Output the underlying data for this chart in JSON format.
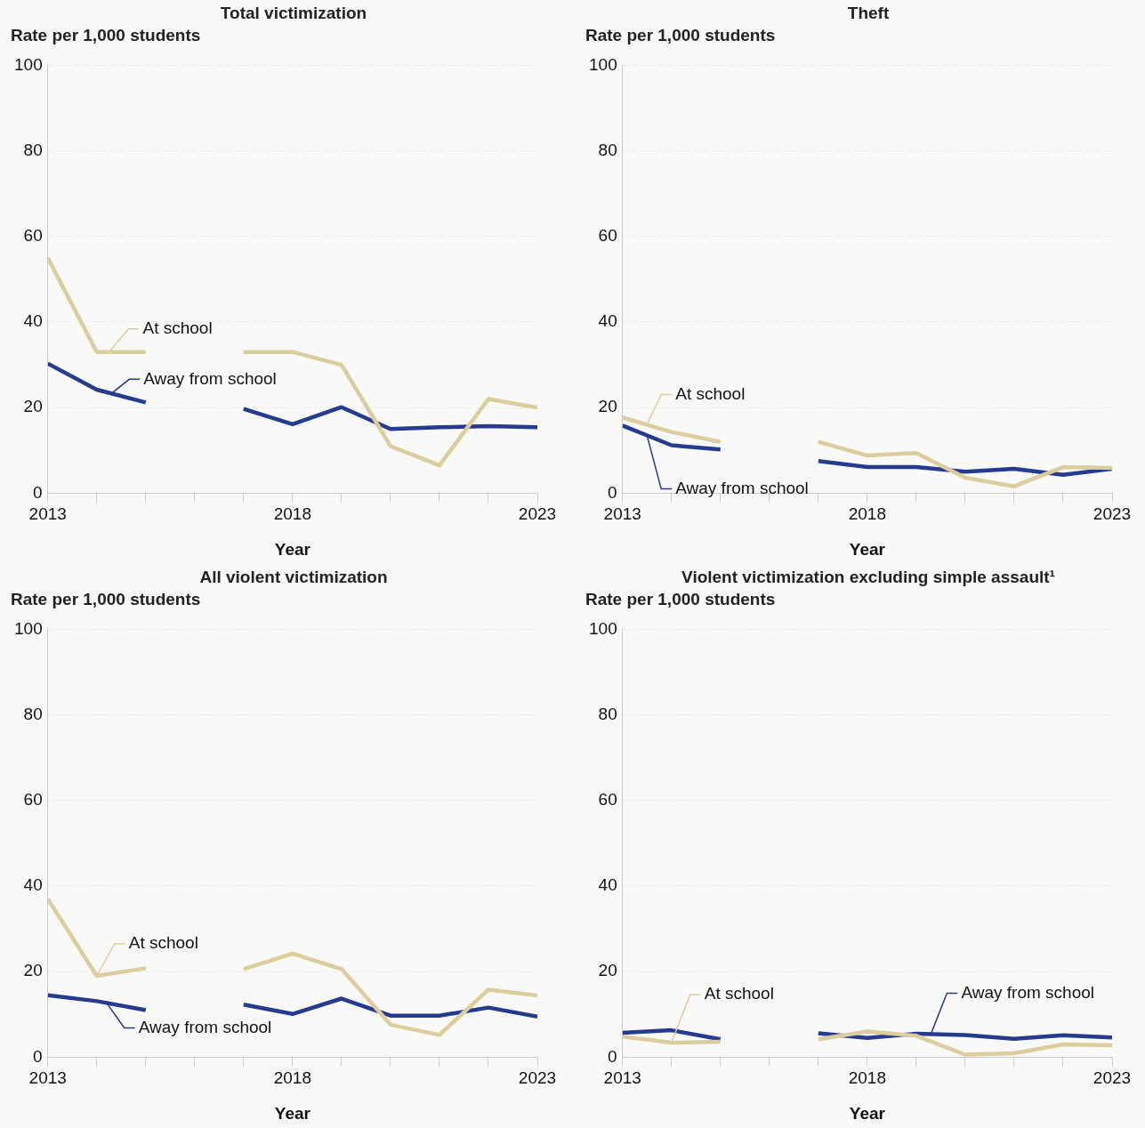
{
  "chart_data": [
    {
      "type": "line",
      "title": "Total victimization",
      "ylabel": "Rate per 1,000 students",
      "xlabel": "Year",
      "x": [
        2013,
        2014,
        2015,
        2016,
        2017,
        2018,
        2019,
        2020,
        2021,
        2022,
        2023
      ],
      "series": [
        {
          "name": "At school",
          "color": "#dccd9e",
          "values": [
            55,
            33,
            33,
            null,
            33,
            33,
            30,
            11,
            6.5,
            22,
            20
          ]
        },
        {
          "name": "Away from school",
          "color": "#263a8e",
          "values": [
            30.3,
            24.2,
            21.2,
            null,
            19.7,
            16.1,
            20.1,
            15,
            15.4,
            15.7,
            15.4
          ]
        }
      ],
      "xlim": [
        2013,
        2023
      ],
      "xticks": [
        2013,
        {
          "value": 2014,
          "label": null
        },
        {
          "value": 2015,
          "label": null
        },
        {
          "value": 2016,
          "label": null
        },
        {
          "value": 2017,
          "label": null
        },
        2018,
        {
          "value": 2019,
          "label": null
        },
        {
          "value": 2020,
          "label": null
        },
        {
          "value": 2021,
          "label": null
        },
        {
          "value": 2022,
          "label": null
        },
        2023
      ],
      "ylim": [
        0,
        100
      ],
      "yticks": [
        0,
        20,
        40,
        60,
        80,
        100
      ],
      "grid": "y"
    },
    {
      "type": "line",
      "title": "Theft",
      "ylabel": "Rate per 1,000 students",
      "xlabel": "Year",
      "x": [
        2013,
        2014,
        2015,
        2016,
        2017,
        2018,
        2019,
        2020,
        2021,
        2022,
        2023
      ],
      "series": [
        {
          "name": "At school",
          "color": "#dccd9e",
          "values": [
            17.7,
            14.3,
            12,
            null,
            12,
            8.8,
            9.4,
            3.6,
            1.6,
            6.1,
            5.9
          ]
        },
        {
          "name": "Away from school",
          "color": "#263a8e",
          "values": [
            15.8,
            11.2,
            10.2,
            null,
            7.5,
            6.1,
            6.1,
            5,
            5.7,
            4.3,
            5.7
          ]
        }
      ],
      "xlim": [
        2013,
        2023
      ],
      "xticks": [
        2013,
        {
          "value": 2014,
          "label": null
        },
        {
          "value": 2015,
          "label": null
        },
        {
          "value": 2016,
          "label": null
        },
        {
          "value": 2017,
          "label": null
        },
        2018,
        {
          "value": 2019,
          "label": null
        },
        {
          "value": 2020,
          "label": null
        },
        {
          "value": 2021,
          "label": null
        },
        {
          "value": 2022,
          "label": null
        },
        2023
      ],
      "ylim": [
        0,
        100
      ],
      "yticks": [
        0,
        20,
        40,
        60,
        80,
        100
      ],
      "grid": "y"
    },
    {
      "type": "line",
      "title": "All violent victimization",
      "ylabel": "Rate per 1,000 students",
      "xlabel": "Year",
      "x": [
        2013,
        2014,
        2015,
        2016,
        2017,
        2018,
        2019,
        2020,
        2021,
        2022,
        2023
      ],
      "series": [
        {
          "name": "At school",
          "color": "#dccd9e",
          "values": [
            37,
            19,
            20.8,
            null,
            20.6,
            24.2,
            20.6,
            7.6,
            5.2,
            15.8,
            14.4
          ]
        },
        {
          "name": "Away from school",
          "color": "#263a8e",
          "values": [
            14.5,
            13.1,
            11,
            null,
            12.3,
            10.1,
            13.7,
            9.7,
            9.7,
            11.6,
            9.5
          ]
        }
      ],
      "xlim": [
        2013,
        2023
      ],
      "xticks": [
        2013,
        {
          "value": 2014,
          "label": null
        },
        {
          "value": 2015,
          "label": null
        },
        {
          "value": 2016,
          "label": null
        },
        {
          "value": 2017,
          "label": null
        },
        2018,
        {
          "value": 2019,
          "label": null
        },
        {
          "value": 2020,
          "label": null
        },
        {
          "value": 2021,
          "label": null
        },
        {
          "value": 2022,
          "label": null
        },
        2023
      ],
      "ylim": [
        0,
        100
      ],
      "yticks": [
        0,
        20,
        40,
        60,
        80,
        100
      ],
      "grid": "y"
    },
    {
      "type": "line",
      "title": "Violent victimization excluding simple assault¹",
      "ylabel": "Rate per 1,000 students",
      "xlabel": "Year",
      "x": [
        2013,
        2014,
        2015,
        2016,
        2017,
        2018,
        2019,
        2020,
        2021,
        2022,
        2023
      ],
      "series": [
        {
          "name": "At school",
          "color": "#dccd9e",
          "values": [
            4.8,
            3.4,
            3.6,
            null,
            4.2,
            6,
            5,
            0.6,
            0.9,
            3,
            2.8
          ]
        },
        {
          "name": "Away from school",
          "color": "#263a8e",
          "values": [
            5.7,
            6.3,
            4.2,
            null,
            5.6,
            4.5,
            5.5,
            5.2,
            4.3,
            5.1,
            4.6
          ]
        }
      ],
      "xlim": [
        2013,
        2023
      ],
      "xticks": [
        2013,
        {
          "value": 2014,
          "label": null
        },
        {
          "value": 2015,
          "label": null
        },
        {
          "value": 2016,
          "label": null
        },
        {
          "value": 2017,
          "label": null
        },
        2018,
        {
          "value": 2019,
          "label": null
        },
        {
          "value": 2020,
          "label": null
        },
        {
          "value": 2021,
          "label": null
        },
        {
          "value": 2022,
          "label": null
        },
        2023
      ],
      "ylim": [
        0,
        100
      ],
      "yticks": [
        0,
        20,
        40,
        60,
        80,
        100
      ],
      "grid": "y"
    }
  ]
}
